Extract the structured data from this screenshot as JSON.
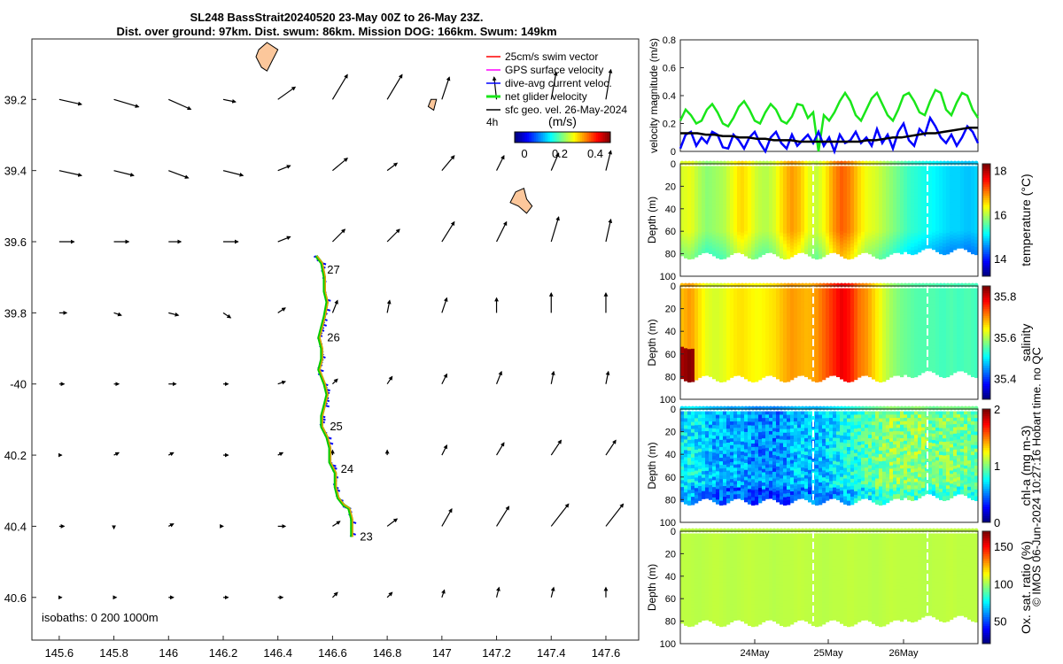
{
  "header": {
    "title_line1": "SL248 BassStrait20240520 23-May 00Z to 26-May 23Z.",
    "title_line2": "Dist. over ground: 97km. Dist. swum: 86km. Mission DOG: 166km. Swum: 149km"
  },
  "copyright": "© IMOS 06-Jun-2024 10:27:16 Hobart time. no QC",
  "colors": {
    "swim": "#ff0000",
    "gps": "#ff00ff",
    "current": "#0000ff",
    "glider": "#19e619",
    "sfc": "#000000",
    "land": "#fcc79b"
  },
  "chart_data": [
    {
      "type": "scatter",
      "name": "map",
      "xlim": [
        145.5,
        147.72
      ],
      "ylim": [
        -40.72,
        -39.03
      ],
      "xticks": [
        145.6,
        145.8,
        146,
        146.2,
        146.4,
        146.6,
        146.8,
        147,
        147.2,
        147.4,
        147.6
      ],
      "xtick_labels": [
        "145.6",
        "145.8",
        "146",
        "146.2",
        "146.4",
        "146.6",
        "146.8",
        "147",
        "147.2",
        "147.4",
        "147.6"
      ],
      "yticks": [
        -39.2,
        -39.4,
        -39.6,
        -39.8,
        -40,
        -40.2,
        -40.4,
        -40.6
      ],
      "ytick_labels": [
        "39.2",
        "39.4",
        "39.6",
        "39.8",
        "-40",
        "40.2",
        "40.4",
        "40.6"
      ],
      "isobaths_label": "isobaths: 0   200  1000m",
      "legend": {
        "items": [
          "25cm/s swim vector",
          "GPS surface velocity",
          "dive-avg current veloc.",
          "net glider velocity",
          "sfc geo. vel. 26-May-2024"
        ],
        "vector_scale_label": "4h",
        "colorbar_label": "(m/s)",
        "colorbar_ticks": [
          "0",
          "0.2",
          "0.4"
        ]
      },
      "track": [
        [
          146.54,
          -39.64
        ],
        [
          146.56,
          -39.66
        ],
        [
          146.57,
          -39.7
        ],
        [
          146.57,
          -39.74
        ],
        [
          146.58,
          -39.77
        ],
        [
          146.57,
          -39.81
        ],
        [
          146.56,
          -39.84
        ],
        [
          146.55,
          -39.87
        ],
        [
          146.56,
          -39.9
        ],
        [
          146.56,
          -39.93
        ],
        [
          146.55,
          -39.96
        ],
        [
          146.57,
          -40.0
        ],
        [
          146.58,
          -40.03
        ],
        [
          146.57,
          -40.06
        ],
        [
          146.56,
          -40.09
        ],
        [
          146.56,
          -40.12
        ],
        [
          146.58,
          -40.15
        ],
        [
          146.59,
          -40.18
        ],
        [
          146.59,
          -40.22
        ],
        [
          146.61,
          -40.25
        ],
        [
          146.61,
          -40.29
        ],
        [
          146.62,
          -40.32
        ],
        [
          146.64,
          -40.34
        ],
        [
          146.66,
          -40.35
        ],
        [
          146.67,
          -40.38
        ],
        [
          146.67,
          -40.41
        ],
        [
          146.67,
          -40.43
        ]
      ],
      "day_labels": [
        {
          "text": "27",
          "lon": 146.58,
          "lat": -39.68
        },
        {
          "text": "26",
          "lon": 146.58,
          "lat": -39.87
        },
        {
          "text": "25",
          "lon": 146.59,
          "lat": -40.12
        },
        {
          "text": "24",
          "lon": 146.63,
          "lat": -40.24
        },
        {
          "text": "23",
          "lon": 146.7,
          "lat": -40.43
        }
      ],
      "vectors": {
        "lons": [
          145.6,
          145.8,
          146,
          146.2,
          146.4,
          146.6,
          146.8,
          147,
          147.2,
          147.4,
          147.6
        ],
        "lats": [
          -39.2,
          -39.4,
          -39.6,
          -39.8,
          -40,
          -40.2,
          -40.4,
          -40.6
        ],
        "u": [
          [
            0.09,
            0.1,
            0.09,
            0.05,
            0.07,
            0.06,
            0.06,
            0.03,
            -0.01,
            0.02,
            0.02
          ],
          [
            0.09,
            0.08,
            0.08,
            0.08,
            0.05,
            0.06,
            0.04,
            0.05,
            0.03,
            0.03,
            0.02
          ],
          [
            0.06,
            0.06,
            0.05,
            0.06,
            0.05,
            0.05,
            0.05,
            0.05,
            0.04,
            0.03,
            0.02
          ],
          [
            0.03,
            0.03,
            0.04,
            0.03,
            0.03,
            0.02,
            0.01,
            0.02,
            0.0,
            0.0,
            0.0
          ],
          [
            0.02,
            0.02,
            0.03,
            0.02,
            0.03,
            0.02,
            0.02,
            0.02,
            0.02,
            0.01,
            0.01
          ],
          [
            0.01,
            0.02,
            0.02,
            0.02,
            0.02,
            0.0,
            0.0,
            0.02,
            0.03,
            0.04,
            0.04
          ],
          [
            0.02,
            0.0,
            0.02,
            0.0,
            0.03,
            0.03,
            0.04,
            0.04,
            0.05,
            0.07,
            0.07
          ],
          [
            0.01,
            0.01,
            0.02,
            0.02,
            0.02,
            0.02,
            0.02,
            0.01,
            0.01,
            0.01,
            0.0
          ]
        ],
        "v": [
          [
            -0.02,
            -0.03,
            -0.04,
            -0.01,
            0.05,
            0.1,
            0.1,
            0.09,
            0.09,
            0.11,
            0.12
          ],
          [
            -0.02,
            -0.02,
            -0.03,
            -0.02,
            0.02,
            0.05,
            0.03,
            0.06,
            0.06,
            0.07,
            0.08
          ],
          [
            0.0,
            0.0,
            0.0,
            0.0,
            0.02,
            0.05,
            0.05,
            0.08,
            0.08,
            0.1,
            0.09
          ],
          [
            0.0,
            -0.01,
            -0.01,
            -0.02,
            0.02,
            0.05,
            0.05,
            0.06,
            0.06,
            0.08,
            0.08
          ],
          [
            0.0,
            0.0,
            0.0,
            0.0,
            0.01,
            0.02,
            0.03,
            0.04,
            0.05,
            0.05,
            0.05
          ],
          [
            0.0,
            0.01,
            0.01,
            0.0,
            0.01,
            0.02,
            0.02,
            0.04,
            0.05,
            0.06,
            0.06
          ],
          [
            0.0,
            -0.01,
            0.01,
            0.0,
            0.0,
            0.02,
            0.03,
            0.07,
            0.08,
            0.09,
            0.09
          ],
          [
            0.0,
            0.0,
            0.0,
            0.0,
            0.0,
            0.02,
            0.02,
            0.03,
            0.04,
            0.04,
            0.04
          ]
        ]
      },
      "land": [
        {
          "name": "king-island",
          "points": [
            [
              146.36,
              -39.04
            ],
            [
              146.4,
              -39.06
            ],
            [
              146.38,
              -39.09
            ],
            [
              146.36,
              -39.12
            ],
            [
              146.34,
              -39.11
            ],
            [
              146.32,
              -39.08
            ],
            [
              146.33,
              -39.06
            ]
          ]
        },
        {
          "name": "islet",
          "points": [
            [
              146.96,
              -39.2
            ],
            [
              146.98,
              -39.2
            ],
            [
              146.97,
              -39.23
            ],
            [
              146.95,
              -39.22
            ]
          ]
        },
        {
          "name": "flinders-island",
          "points": [
            [
              147.27,
              -39.46
            ],
            [
              147.3,
              -39.45
            ],
            [
              147.31,
              -39.48
            ],
            [
              147.33,
              -39.5
            ],
            [
              147.31,
              -39.52
            ],
            [
              147.28,
              -39.5
            ],
            [
              147.25,
              -39.49
            ]
          ]
        }
      ]
    },
    {
      "type": "line",
      "name": "velocity",
      "ylabel": "velocity magnitude (m/s)",
      "ylim": [
        0,
        0.8
      ],
      "yticks": [
        "0",
        "0.2",
        "0.4",
        "0.6",
        "0.8"
      ],
      "series": [
        {
          "name": "net glider velocity",
          "color": "#19e619",
          "values": [
            0.22,
            0.3,
            0.26,
            0.2,
            0.22,
            0.3,
            0.34,
            0.28,
            0.2,
            0.18,
            0.24,
            0.32,
            0.36,
            0.3,
            0.22,
            0.2,
            0.28,
            0.34,
            0.3,
            0.22,
            0.2,
            0.25,
            0.34,
            0.33,
            0.24,
            0.28,
            0.0,
            0.26,
            0.22,
            0.28,
            0.36,
            0.42,
            0.36,
            0.26,
            0.22,
            0.3,
            0.38,
            0.42,
            0.34,
            0.26,
            0.22,
            0.3,
            0.4,
            0.42,
            0.36,
            0.28,
            0.26,
            0.36,
            0.44,
            0.42,
            0.3,
            0.26,
            0.35,
            0.42,
            0.4,
            0.3,
            0.24
          ]
        },
        {
          "name": "dive-avg current",
          "color": "#0000ff",
          "values": [
            0.02,
            0.12,
            0.14,
            0.04,
            0.1,
            0.06,
            0.14,
            0.12,
            0.03,
            0.02,
            0.12,
            0.08,
            0.02,
            0.1,
            0.14,
            0.06,
            0.0,
            0.1,
            0.14,
            0.06,
            0.02,
            0.12,
            0.04,
            0.08,
            0.12,
            0.06,
            0.14,
            0.04,
            0.1,
            0.0,
            0.12,
            0.06,
            0.08,
            0.14,
            0.06,
            0.1,
            0.04,
            0.16,
            0.06,
            0.12,
            0.02,
            0.14,
            0.2,
            0.08,
            0.04,
            0.16,
            0.12,
            0.24,
            0.18,
            0.1,
            0.06,
            0.12,
            0.04,
            0.1,
            0.18,
            0.14,
            0.06
          ]
        },
        {
          "name": "sfc geo. vel.",
          "color": "#000000",
          "values": [
            0.13,
            0.13,
            0.13,
            0.12,
            0.12,
            0.11,
            0.11,
            0.1,
            0.1,
            0.09,
            0.09,
            0.08,
            0.08,
            0.08,
            0.07,
            0.07,
            0.07,
            0.07,
            0.07,
            0.07,
            0.07,
            0.07,
            0.08,
            0.08,
            0.09,
            0.1,
            0.1,
            0.11,
            0.12,
            0.13,
            0.13,
            0.14,
            0.15,
            0.16,
            0.17,
            0.17
          ]
        }
      ]
    },
    {
      "type": "heatmap",
      "name": "temperature",
      "ylabel": "Depth (m)",
      "clabel": "temperature (°C)",
      "clim": [
        13.2,
        18.3
      ],
      "cticks": [
        "14",
        "16",
        "18"
      ],
      "yticks": [
        "0",
        "20",
        "40",
        "60",
        "80",
        "100"
      ],
      "profile": [
        16.2,
        16.3,
        16.0,
        15.8,
        15.9,
        16.0,
        16.3,
        16.6,
        16.4,
        16.1,
        16.0,
        16.2,
        16.6,
        16.9,
        16.7,
        16.3,
        16.1,
        16.4,
        16.9,
        17.2,
        17.0,
        16.6,
        16.3,
        16.2,
        16.0,
        15.8,
        15.6,
        15.4,
        15.3,
        15.2,
        15.1,
        15.0,
        14.9,
        14.9,
        14.8,
        14.9
      ]
    },
    {
      "type": "heatmap",
      "name": "salinity",
      "ylabel": "Depth (m)",
      "clabel": "salinity",
      "clim": [
        35.3,
        35.85
      ],
      "cticks": [
        "35.4",
        "35.6",
        "35.8"
      ],
      "yticks": [
        "0",
        "20",
        "40",
        "60",
        "80",
        "100"
      ],
      "profile": [
        35.68,
        35.7,
        35.66,
        35.63,
        35.62,
        35.63,
        35.65,
        35.66,
        35.65,
        35.64,
        35.65,
        35.66,
        35.68,
        35.7,
        35.69,
        35.68,
        35.7,
        35.73,
        35.76,
        35.79,
        35.77,
        35.72,
        35.7,
        35.66,
        35.62,
        35.59,
        35.57,
        35.56,
        35.55,
        35.55,
        35.55,
        35.54,
        35.55,
        35.54,
        35.55,
        35.54
      ]
    },
    {
      "type": "heatmap",
      "name": "chlorophyll",
      "ylabel": "Depth (m)",
      "clabel": "chl-a (mg m-3)",
      "clim": [
        0,
        2
      ],
      "cticks": [
        "0",
        "1",
        "2"
      ],
      "yticks": [
        "0",
        "20",
        "40",
        "60",
        "80",
        "100"
      ],
      "profile": [
        0.7,
        0.75,
        0.7,
        0.65,
        0.6,
        0.6,
        0.55,
        0.6,
        0.55,
        0.5,
        0.55,
        0.5,
        0.55,
        0.6,
        0.65,
        0.62,
        0.6,
        0.65,
        0.7,
        0.75,
        0.8,
        0.85,
        0.9,
        0.95,
        1.0,
        1.05,
        1.0,
        1.0,
        1.05,
        1.0,
        0.95,
        1.0,
        1.0,
        0.98,
        1.0,
        0.95
      ]
    },
    {
      "type": "heatmap",
      "name": "oxygen",
      "ylabel": "Depth (m)",
      "clabel": "Ox. sat. ratio (%)",
      "clim": [
        20,
        170
      ],
      "cticks": [
        "50",
        "100",
        "150"
      ],
      "yticks": [
        "0",
        "20",
        "40",
        "60",
        "80",
        "100"
      ],
      "profile": [
        104,
        104,
        103,
        104,
        105,
        104,
        103,
        104,
        105,
        104,
        104,
        103,
        104,
        104,
        105,
        104,
        104,
        103,
        104,
        104,
        105,
        104,
        104,
        103,
        104,
        105,
        104,
        104,
        104,
        103,
        104,
        104,
        105,
        104,
        104,
        104
      ]
    }
  ],
  "time_axis": {
    "labels": [
      "24May",
      "25May",
      "26May"
    ]
  }
}
